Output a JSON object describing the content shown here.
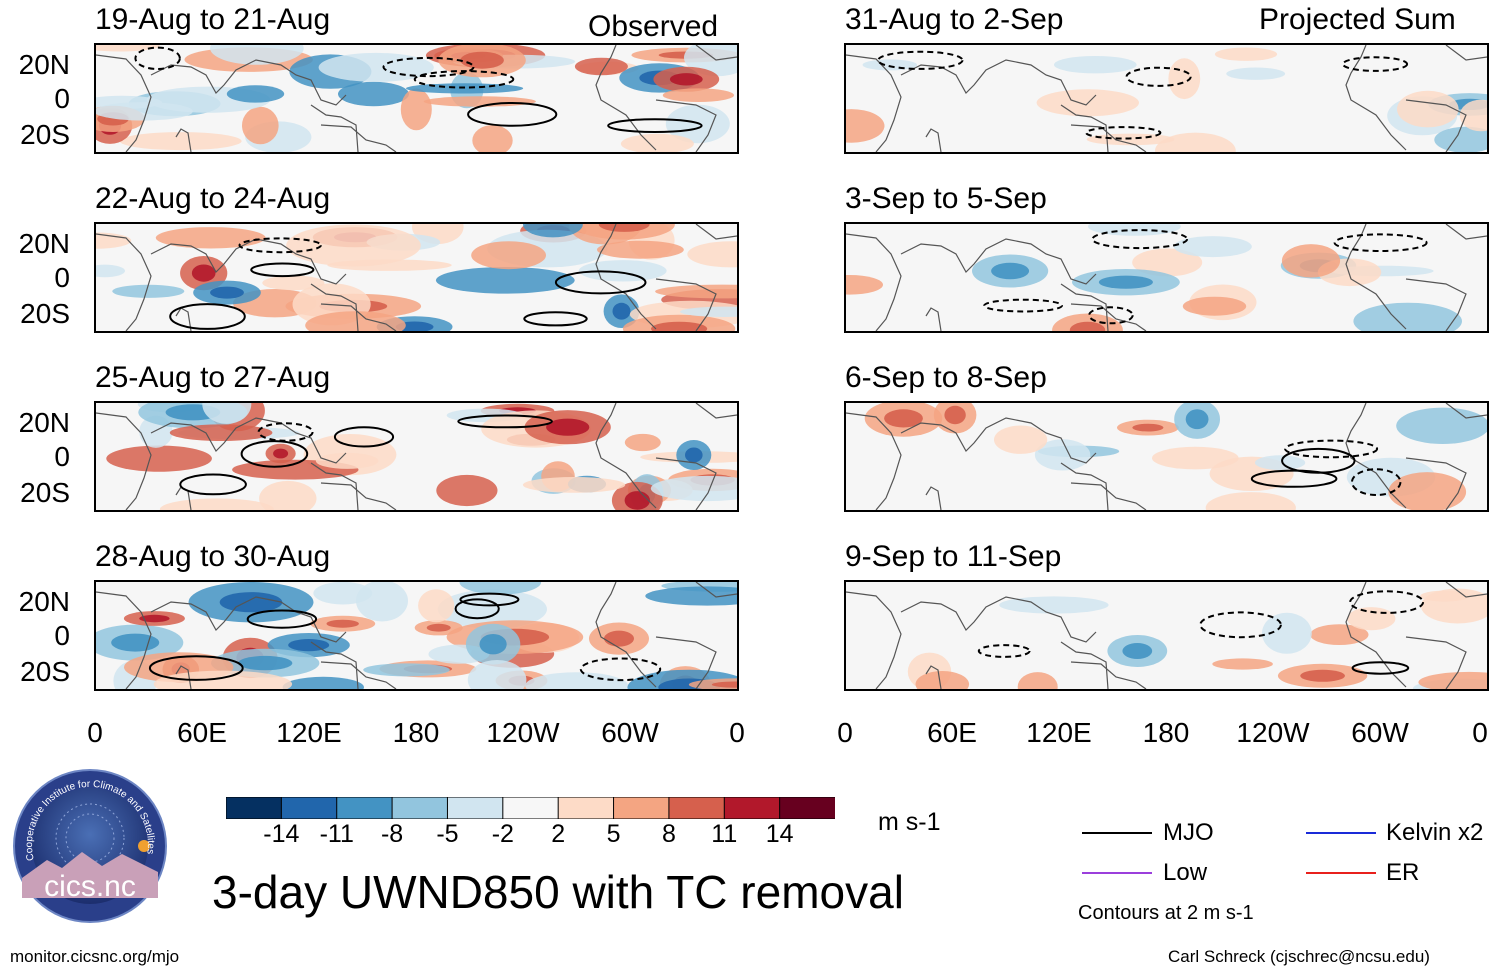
{
  "panels_observed": [
    {
      "title": "19-Aug to 21-Aug",
      "tag": "Observed"
    },
    {
      "title": "22-Aug to 24-Aug",
      "tag": ""
    },
    {
      "title": "25-Aug to 27-Aug",
      "tag": ""
    },
    {
      "title": "28-Aug to 30-Aug",
      "tag": ""
    }
  ],
  "panels_projected": [
    {
      "title": "31-Aug to 2-Sep",
      "tag": "Projected Sum"
    },
    {
      "title": "3-Sep to 5-Sep",
      "tag": ""
    },
    {
      "title": "6-Sep to 8-Sep",
      "tag": ""
    },
    {
      "title": "9-Sep to 11-Sep",
      "tag": ""
    }
  ],
  "lat_labels": [
    "20N",
    "0",
    "20S"
  ],
  "lon_labels": [
    "0",
    "60E",
    "120E",
    "180",
    "120W",
    "60W",
    "0"
  ],
  "colorbar": {
    "labels": [
      "-14",
      "-11",
      "-8",
      "-5",
      "-2",
      "2",
      "5",
      "8",
      "11",
      "14"
    ],
    "colors": [
      "#053061",
      "#2166ac",
      "#4393c3",
      "#92c5de",
      "#d1e5f0",
      "#f7f7f7",
      "#fddbc7",
      "#f4a582",
      "#d6604d",
      "#b2182b",
      "#67001f"
    ],
    "units": "m s-1"
  },
  "main_title": "3-day UWND850 with TC removal",
  "legend": {
    "mjo": {
      "label": "MJO",
      "color": "#000000"
    },
    "kelvin": {
      "label": "Kelvin x2",
      "color": "#1a2bd8"
    },
    "low": {
      "label": "Low",
      "color": "#9b3fdc"
    },
    "er": {
      "label": "ER",
      "color": "#e8201c"
    },
    "note": "Contours at 2 m s-1"
  },
  "logo": {
    "text": "cics.nc",
    "ring_text": "Cooperative Institute for Climate and Satellites"
  },
  "footer": {
    "left": "monitor.cicsnc.org/mjo",
    "right": "Carl Schreck (cjschrec@ncsu.edu)"
  }
}
